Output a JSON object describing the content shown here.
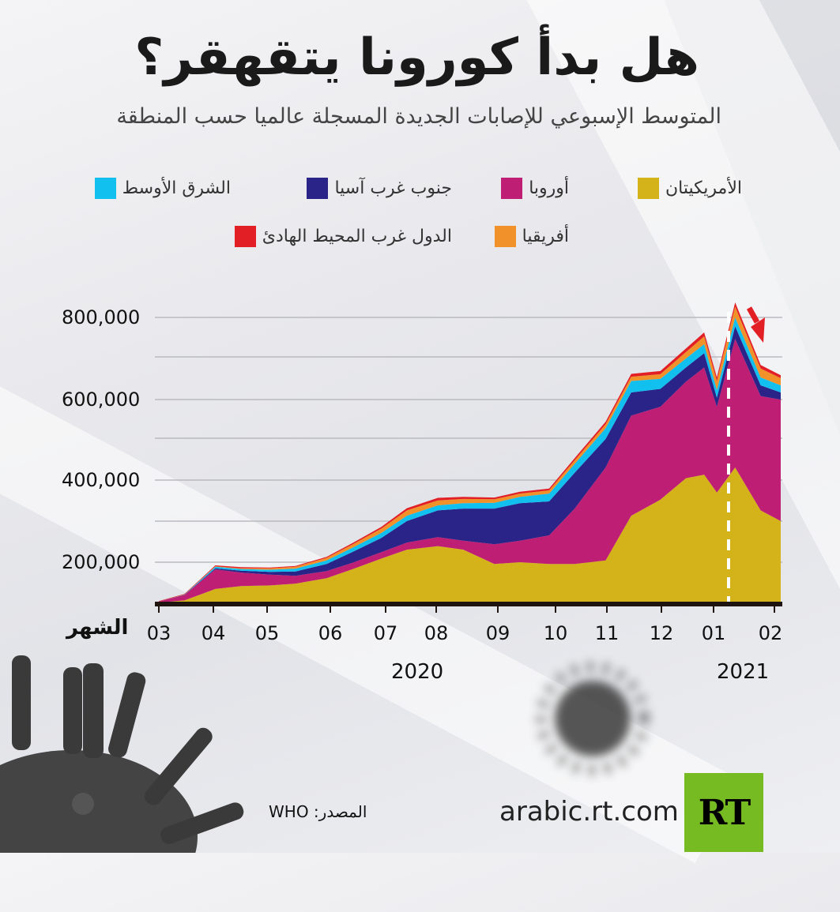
{
  "header": {
    "title": "هل بدأ كورونا يتقهقر؟",
    "subtitle": "المتوسط الإسبوعي للإصابات الجديدة المسجلة عالميا حسب المنطقة"
  },
  "legend": [
    {
      "label": "الأمريكيتان",
      "color": "#d4b21a"
    },
    {
      "label": "أوروبا",
      "color": "#be1e74"
    },
    {
      "label": "جنوب غرب آسيا",
      "color": "#2a2388"
    },
    {
      "label": "الشرق الأوسط",
      "color": "#12c0f0"
    },
    {
      "label": "أفريقيا",
      "color": "#f0912a"
    },
    {
      "label": "الدول غرب المحيط الهادئ",
      "color": "#e31f26"
    }
  ],
  "axes": {
    "x_label": "الشهر",
    "y_ticks": [
      "800,000",
      "600,000",
      "400,000",
      "200,000"
    ],
    "x_ticks": [
      "03",
      "04",
      "05",
      "06",
      "07",
      "08",
      "09",
      "10",
      "11",
      "12",
      "01",
      "02"
    ],
    "years": [
      "2020",
      "2021"
    ]
  },
  "footer": {
    "source": "المصدر: WHO",
    "site": "arabic.rt.com",
    "logo": "RT"
  },
  "chart_data": {
    "type": "area",
    "stacked": true,
    "title": "هل بدأ كورونا يتقهقر؟",
    "subtitle": "المتوسط الإسبوعي للإصابات الجديدة المسجلة عالميا حسب المنطقة",
    "xlabel": "الشهر",
    "ylabel": "",
    "ylim": [
      0,
      850000
    ],
    "y_ticks": [
      200000,
      400000,
      600000,
      800000
    ],
    "grid": true,
    "legend_position": "top",
    "x": [
      "2020-03-01",
      "2020-03-15",
      "2020-04-01",
      "2020-04-15",
      "2020-05-01",
      "2020-05-15",
      "2020-06-01",
      "2020-06-15",
      "2020-07-01",
      "2020-07-15",
      "2020-08-01",
      "2020-08-15",
      "2020-09-01",
      "2020-09-15",
      "2020-10-01",
      "2020-10-15",
      "2020-11-01",
      "2020-11-15",
      "2020-12-01",
      "2020-12-15",
      "2020-12-25",
      "2021-01-01",
      "2021-01-11",
      "2021-01-25",
      "2021-02-05"
    ],
    "series": [
      {
        "name": "الأمريكيتان",
        "values": [
          2000,
          8000,
          40000,
          48000,
          50000,
          55000,
          70000,
          95000,
          125000,
          150000,
          160000,
          150000,
          110000,
          115000,
          110000,
          110000,
          120000,
          245000,
          290000,
          350000,
          360000,
          310000,
          380000,
          260000,
          230000
        ]
      },
      {
        "name": "أوروبا",
        "values": [
          3000,
          15000,
          55000,
          38000,
          30000,
          22000,
          20000,
          18000,
          18000,
          20000,
          25000,
          25000,
          55000,
          60000,
          80000,
          155000,
          260000,
          280000,
          260000,
          270000,
          300000,
          240000,
          360000,
          320000,
          340000
        ]
      },
      {
        "name": "جنوب غرب آسيا",
        "values": [
          0,
          500,
          3000,
          5000,
          8000,
          12000,
          20000,
          30000,
          40000,
          60000,
          75000,
          90000,
          100000,
          105000,
          95000,
          100000,
          80000,
          65000,
          50000,
          40000,
          40000,
          25000,
          35000,
          30000,
          20000
        ]
      },
      {
        "name": "الشرق الأوسط",
        "values": [
          0,
          500,
          4000,
          5000,
          6000,
          8000,
          10000,
          12000,
          14000,
          15000,
          14000,
          15000,
          16000,
          18000,
          22000,
          25000,
          30000,
          32000,
          28000,
          25000,
          25000,
          22000,
          25000,
          22000,
          20000
        ]
      },
      {
        "name": "أفريقيا",
        "values": [
          0,
          300,
          1500,
          2000,
          4000,
          5000,
          7000,
          9000,
          12000,
          15000,
          14000,
          12000,
          10000,
          9000,
          9000,
          10000,
          11000,
          12000,
          13000,
          18000,
          22000,
          25000,
          30000,
          25000,
          20000
        ]
      },
      {
        "name": "الدول غرب المحيط الهادئ",
        "values": [
          1000,
          1500,
          2500,
          3000,
          2000,
          2500,
          3000,
          4000,
          5000,
          6000,
          7000,
          6000,
          5000,
          5000,
          5000,
          6000,
          7000,
          8000,
          9000,
          10000,
          11000,
          10000,
          12000,
          10000,
          8000
        ]
      }
    ]
  }
}
